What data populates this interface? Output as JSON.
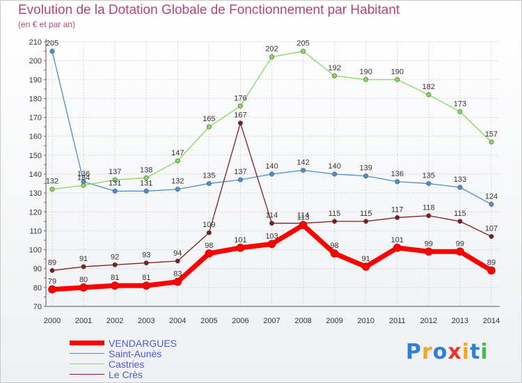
{
  "chart_data": {
    "type": "line",
    "title": "Evolution de la Dotation Globale de Fonctionnement par Habitant",
    "subtitle": "(en € et par an)",
    "x": [
      "2000",
      "2001",
      "2002",
      "2003",
      "2004",
      "2005",
      "2006",
      "2007",
      "2008",
      "2009",
      "2010",
      "2011",
      "2012",
      "2013",
      "2014"
    ],
    "yticks": [
      70,
      80,
      90,
      100,
      110,
      120,
      130,
      140,
      150,
      160,
      170,
      180,
      190,
      200,
      210
    ],
    "ylim": [
      70,
      210
    ],
    "grid": true,
    "legend_position": "bottom-left",
    "series": [
      {
        "name": "Saint-Aunès",
        "color": "#4d8fcf",
        "values": [
          205,
          136,
          131,
          131,
          132,
          135,
          137,
          140,
          142,
          140,
          139,
          136,
          135,
          133,
          124
        ]
      },
      {
        "name": "Castries",
        "color": "#8fd45c",
        "values": [
          132,
          134,
          137,
          138,
          147,
          165,
          176,
          202,
          205,
          192,
          190,
          190,
          182,
          173,
          157
        ]
      },
      {
        "name": "Le Crès",
        "color": "#7a1f1f",
        "values": [
          89,
          91,
          92,
          93,
          94,
          109,
          167,
          114,
          114,
          115,
          115,
          117,
          118,
          115,
          107
        ]
      },
      {
        "name": "VENDARGUES",
        "color": "#ff0000",
        "values": [
          79,
          80,
          81,
          81,
          83,
          98,
          101,
          103,
          113,
          98,
          91,
          101,
          99,
          99,
          89
        ]
      }
    ]
  },
  "legend": [
    {
      "name": "VENDARGUES",
      "color": "#ff0000",
      "width": 7,
      "text_color": "#4b5bd1"
    },
    {
      "name": "Saint-Aunès",
      "color": "#4d8fcf",
      "width": 1.5,
      "text_color": "#4b5bd1"
    },
    {
      "name": "Castries",
      "color": "#8fd45c",
      "width": 1.5,
      "text_color": "#4b5bd1"
    },
    {
      "name": "Le Crès",
      "color": "#7a1f1f",
      "width": 1.5,
      "text_color": "#4b5bd1"
    }
  ],
  "logo": {
    "text": "Proxiti",
    "letters": [
      "P",
      "r",
      "o",
      "x",
      "i",
      "t",
      "i"
    ],
    "colors": [
      "#2f7fd6",
      "#f5a623",
      "#2f7fd6",
      "#e8362e",
      "#f5a623",
      "#2f7fd6",
      "#4db84d"
    ]
  }
}
